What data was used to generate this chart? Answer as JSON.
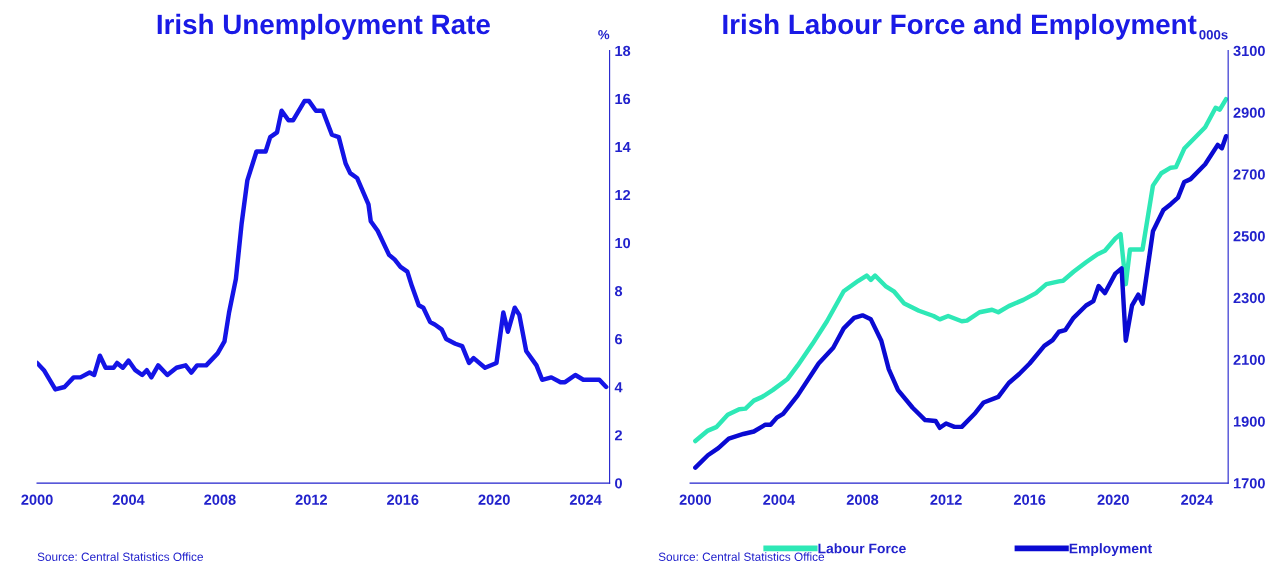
{
  "chart_data": [
    {
      "type": "line",
      "title": "Irish Unemployment Rate",
      "ylabel": "%",
      "annotations": [
        "Source: Central Statistics Office"
      ],
      "xlim": [
        2000,
        2025.05
      ],
      "xticks": [
        2000,
        2004,
        2008,
        2012,
        2016,
        2020,
        2024
      ],
      "ylim": [
        0,
        18
      ],
      "yticks": [
        0,
        2,
        4,
        6,
        8,
        10,
        12,
        14,
        16,
        18
      ],
      "grid": false,
      "legend": false,
      "series": [
        {
          "color": "#1414e6",
          "x": [
            2000.0,
            2000.3,
            2000.8,
            2001.2,
            2001.6,
            2001.9,
            2002.3,
            2002.5,
            2002.75,
            2003.0,
            2003.35,
            2003.5,
            2003.75,
            2004.0,
            2004.3,
            2004.6,
            2004.8,
            2005.0,
            2005.3,
            2005.7,
            2006.1,
            2006.5,
            2006.75,
            2007.0,
            2007.4,
            2007.9,
            2008.2,
            2008.4,
            2008.7,
            2008.95,
            2009.2,
            2009.6,
            2010.0,
            2010.2,
            2010.5,
            2010.7,
            2011.0,
            2011.2,
            2011.7,
            2011.9,
            2012.2,
            2012.5,
            2012.9,
            2013.2,
            2013.5,
            2013.7,
            2014.0,
            2014.5,
            2014.6,
            2014.9,
            2015.4,
            2015.65,
            2015.9,
            2016.2,
            2016.4,
            2016.7,
            2016.9,
            2017.2,
            2017.4,
            2017.7,
            2017.9,
            2018.3,
            2018.6,
            2018.9,
            2019.1,
            2019.6,
            2020.1,
            2020.4,
            2020.6,
            2020.9,
            2021.1,
            2021.4,
            2021.85,
            2022.1,
            2022.5,
            2022.9,
            2023.1,
            2023.55,
            2023.9,
            2024.6,
            2024.9
          ],
          "values": [
            5.0,
            4.7,
            3.9,
            4.0,
            4.4,
            4.4,
            4.6,
            4.5,
            5.3,
            4.8,
            4.8,
            5.0,
            4.8,
            5.1,
            4.7,
            4.5,
            4.7,
            4.4,
            4.9,
            4.5,
            4.8,
            4.9,
            4.6,
            4.9,
            4.9,
            5.4,
            5.9,
            7.1,
            8.5,
            10.8,
            12.6,
            13.8,
            13.8,
            14.4,
            14.6,
            15.5,
            15.1,
            15.1,
            15.9,
            15.9,
            15.5,
            15.5,
            14.5,
            14.4,
            13.3,
            12.9,
            12.7,
            11.6,
            10.9,
            10.5,
            9.5,
            9.3,
            9.0,
            8.8,
            8.2,
            7.4,
            7.3,
            6.7,
            6.6,
            6.4,
            6.0,
            5.8,
            5.7,
            5.0,
            5.2,
            4.8,
            5.0,
            7.1,
            6.3,
            7.3,
            7.0,
            5.5,
            4.9,
            4.3,
            4.4,
            4.2,
            4.2,
            4.5,
            4.3,
            4.3,
            4.0
          ]
        }
      ]
    },
    {
      "type": "line",
      "title": "Irish Labour Force and Employment",
      "ylabel": "000s",
      "annotations": [
        "Source: Central Statistics Office"
      ],
      "xlim": [
        1999.75,
        2025.5
      ],
      "xticks": [
        2000,
        2004,
        2008,
        2012,
        2016,
        2020,
        2024
      ],
      "ylim": [
        1700,
        3100
      ],
      "yticks": [
        1700,
        1900,
        2100,
        2300,
        2500,
        2700,
        2900,
        3100
      ],
      "grid": false,
      "legend": "bottom",
      "series": [
        {
          "name": "Labour Force",
          "color": "#2ee8b6",
          "x": [
            2000.0,
            2000.6,
            2001.0,
            2001.55,
            2002.1,
            2002.4,
            2002.8,
            2003.2,
            2003.7,
            2004.4,
            2004.9,
            2005.6,
            2006.3,
            2007.1,
            2007.8,
            2008.2,
            2008.4,
            2008.6,
            2009.1,
            2009.5,
            2010.0,
            2010.7,
            2011.4,
            2011.7,
            2012.1,
            2012.75,
            2013.0,
            2013.6,
            2014.2,
            2014.5,
            2015.0,
            2015.7,
            2016.3,
            2016.8,
            2017.4,
            2017.6,
            2018.1,
            2018.7,
            2019.25,
            2019.6,
            2020.1,
            2020.35,
            2020.6,
            2020.8,
            2021.4,
            2021.9,
            2022.3,
            2022.75,
            2023.0,
            2023.4,
            2024.4,
            2024.9,
            2025.1,
            2025.4
          ],
          "values": [
            1836,
            1870,
            1881,
            1921,
            1939,
            1941,
            1967,
            1979,
            2001,
            2036,
            2081,
            2150,
            2224,
            2321,
            2355,
            2372,
            2358,
            2372,
            2338,
            2321,
            2281,
            2258,
            2241,
            2230,
            2241,
            2224,
            2226,
            2253,
            2261,
            2253,
            2273,
            2293,
            2315,
            2344,
            2353,
            2355,
            2384,
            2415,
            2441,
            2452,
            2492,
            2506,
            2344,
            2456,
            2456,
            2663,
            2703,
            2721,
            2723,
            2783,
            2852,
            2915,
            2909,
            2943
          ]
        },
        {
          "name": "Employment",
          "color": "#0a0ad2",
          "x": [
            2000.0,
            2000.6,
            2001.1,
            2001.6,
            2002.3,
            2002.8,
            2003.35,
            2003.6,
            2003.9,
            2004.2,
            2004.9,
            2005.9,
            2006.6,
            2007.1,
            2007.6,
            2008.0,
            2008.4,
            2008.9,
            2009.25,
            2009.7,
            2010.4,
            2011.0,
            2011.5,
            2011.7,
            2012.0,
            2012.4,
            2012.75,
            2013.4,
            2013.8,
            2014.5,
            2015.0,
            2015.5,
            2016.0,
            2016.7,
            2017.1,
            2017.4,
            2017.7,
            2018.1,
            2018.7,
            2019.05,
            2019.3,
            2019.6,
            2020.1,
            2020.4,
            2020.6,
            2020.9,
            2021.2,
            2021.4,
            2021.9,
            2022.4,
            2022.75,
            2023.1,
            2023.4,
            2023.7,
            2024.4,
            2025.0,
            2025.2,
            2025.4
          ],
          "values": [
            1750,
            1790,
            1813,
            1844,
            1859,
            1867,
            1889,
            1889,
            1912,
            1924,
            1984,
            2087,
            2138,
            2201,
            2235,
            2243,
            2230,
            2161,
            2070,
            2001,
            1944,
            1904,
            1901,
            1879,
            1893,
            1882,
            1882,
            1927,
            1961,
            1979,
            2024,
            2053,
            2087,
            2144,
            2163,
            2190,
            2195,
            2235,
            2275,
            2289,
            2338,
            2315,
            2378,
            2395,
            2161,
            2275,
            2310,
            2281,
            2515,
            2584,
            2603,
            2624,
            2675,
            2684,
            2732,
            2795,
            2784,
            2823
          ]
        }
      ]
    }
  ]
}
